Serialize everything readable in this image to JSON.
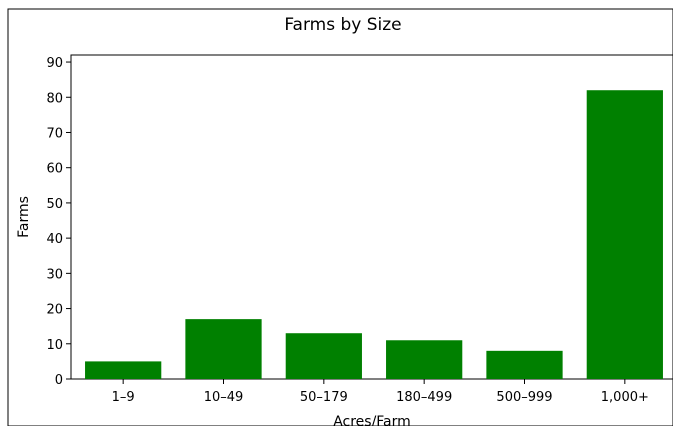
{
  "chart_data": {
    "type": "bar",
    "title": "Farms by Size",
    "xlabel": "Acres/Farm",
    "ylabel": "Farms",
    "categories": [
      "1–9",
      "10–49",
      "50–179",
      "180–499",
      "500–999",
      "1,000+"
    ],
    "values": [
      5,
      17,
      13,
      11,
      8,
      82
    ],
    "ylim": [
      0,
      92
    ],
    "yticks": [
      0,
      10,
      20,
      30,
      40,
      50,
      60,
      70,
      80,
      90
    ],
    "grid": false,
    "legend": false,
    "bar_color": "#008000"
  }
}
